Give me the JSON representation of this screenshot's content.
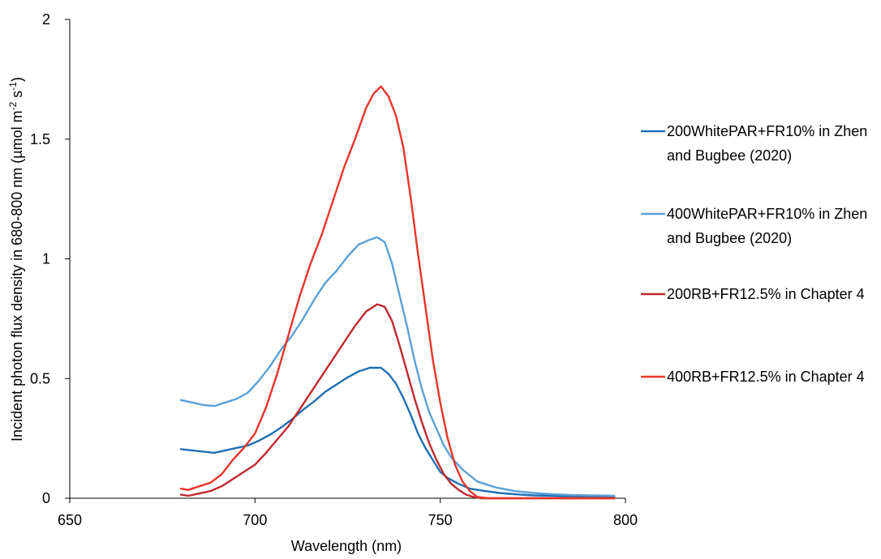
{
  "chart_data": {
    "type": "line",
    "title": "",
    "xlabel": "Wavelength (nm)",
    "ylabel": "Incident photon flux density in 680-800 nm (µmol m",
    "ylabel_sup1": "-2",
    "ylabel_mid": " s",
    "ylabel_sup2": "-1",
    "ylabel_end": ")",
    "xlim": [
      650,
      800
    ],
    "ylim": [
      0,
      2
    ],
    "xticks": [
      650,
      700,
      750,
      800
    ],
    "yticks": [
      0,
      0.5,
      1,
      1.5,
      2
    ],
    "xtick_labels": [
      "650",
      "700",
      "750",
      "800"
    ],
    "ytick_labels": [
      "0",
      "0.5",
      "1",
      "1.5",
      "2"
    ],
    "grid": false,
    "legend_position": "right",
    "series": [
      {
        "name": "200WhitePAR+FR10% in Zhen and Bugbee (2020)",
        "legend_lines": [
          "200WhitePAR+FR10% in Zhen",
          "and Bugbee (2020)"
        ],
        "color": "#1f6fb5",
        "x": [
          680,
          683,
          686,
          689,
          692,
          695,
          698,
          701,
          704,
          707,
          710,
          713,
          716,
          719,
          722,
          725,
          728,
          731,
          734,
          736,
          738,
          740,
          742,
          744,
          746,
          748,
          750,
          752,
          755,
          758,
          762,
          766,
          770,
          775,
          780,
          785,
          790,
          795,
          797
        ],
        "y": [
          0.205,
          0.2,
          0.195,
          0.19,
          0.2,
          0.21,
          0.22,
          0.24,
          0.265,
          0.295,
          0.33,
          0.37,
          0.405,
          0.445,
          0.475,
          0.505,
          0.53,
          0.545,
          0.545,
          0.52,
          0.48,
          0.42,
          0.35,
          0.27,
          0.21,
          0.16,
          0.11,
          0.085,
          0.06,
          0.04,
          0.03,
          0.022,
          0.017,
          0.012,
          0.01,
          0.008,
          0.006,
          0.005,
          0.005
        ]
      },
      {
        "name": "400WhitePAR+FR10% in Zhen and Bugbee (2020)",
        "legend_lines": [
          "400WhitePAR+FR10% in Zhen",
          "and Bugbee (2020)"
        ],
        "color": "#5aa0d6",
        "x": [
          680,
          683,
          686,
          689,
          692,
          695,
          698,
          701,
          704,
          707,
          710,
          713,
          716,
          719,
          722,
          725,
          728,
          731,
          733,
          735,
          737,
          739,
          741,
          743,
          745,
          747,
          749,
          751,
          753,
          756,
          760,
          765,
          770,
          775,
          780,
          785,
          790,
          795,
          797
        ],
        "y": [
          0.41,
          0.4,
          0.39,
          0.385,
          0.4,
          0.415,
          0.44,
          0.49,
          0.55,
          0.62,
          0.68,
          0.75,
          0.83,
          0.9,
          0.95,
          1.01,
          1.06,
          1.08,
          1.09,
          1.07,
          0.98,
          0.85,
          0.72,
          0.58,
          0.46,
          0.36,
          0.29,
          0.22,
          0.17,
          0.12,
          0.07,
          0.045,
          0.03,
          0.022,
          0.017,
          0.014,
          0.012,
          0.011,
          0.01
        ]
      },
      {
        "name": "200RB+FR12.5% in Chapter 4",
        "legend_lines": [
          "200RB+FR12.5% in Chapter 4"
        ],
        "color": "#c0282d",
        "x": [
          680,
          682,
          685,
          688,
          691,
          694,
          697,
          700,
          703,
          706,
          709,
          712,
          715,
          718,
          721,
          724,
          727,
          730,
          733,
          735,
          737,
          739,
          741,
          743,
          745,
          747,
          749,
          751,
          753,
          755,
          757,
          759,
          761,
          765,
          770,
          780,
          790,
          797
        ],
        "y": [
          0.015,
          0.01,
          0.02,
          0.03,
          0.05,
          0.08,
          0.11,
          0.14,
          0.19,
          0.245,
          0.3,
          0.37,
          0.44,
          0.51,
          0.58,
          0.65,
          0.72,
          0.78,
          0.81,
          0.8,
          0.74,
          0.64,
          0.53,
          0.42,
          0.32,
          0.23,
          0.16,
          0.1,
          0.06,
          0.035,
          0.015,
          0.005,
          0.0,
          0.0,
          0.0,
          0.0,
          0.0,
          0.0
        ]
      },
      {
        "name": "400RB+FR12.5% in Chapter 4",
        "legend_lines": [
          "400RB+FR12.5% in Chapter 4"
        ],
        "color": "#e8342b",
        "x": [
          680,
          682,
          685,
          688,
          691,
          694,
          697,
          700,
          703,
          706,
          709,
          712,
          715,
          718,
          721,
          724,
          727,
          730,
          732,
          734,
          736,
          738,
          740,
          742,
          744,
          746,
          748,
          750,
          752,
          754,
          756,
          758,
          760,
          763,
          770,
          780,
          790,
          797
        ],
        "y": [
          0.04,
          0.035,
          0.05,
          0.065,
          0.1,
          0.16,
          0.21,
          0.27,
          0.38,
          0.52,
          0.68,
          0.84,
          0.98,
          1.1,
          1.24,
          1.38,
          1.5,
          1.63,
          1.69,
          1.72,
          1.68,
          1.6,
          1.47,
          1.26,
          1.02,
          0.8,
          0.58,
          0.4,
          0.25,
          0.14,
          0.07,
          0.03,
          0.005,
          0.0,
          0.0,
          0.0,
          0.0,
          0.0
        ]
      }
    ]
  }
}
